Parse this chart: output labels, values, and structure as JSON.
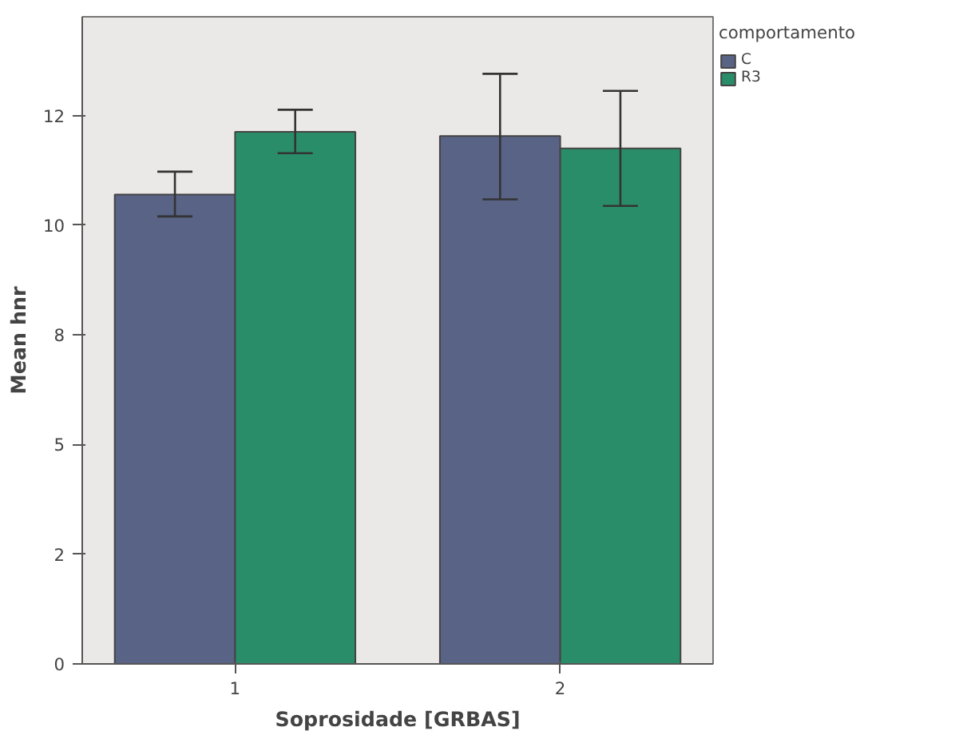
{
  "chart_data": {
    "type": "bar",
    "xlabel": "Soprosidade [GRBAS]",
    "ylabel": "Mean hnr",
    "legend_title": "comportamento",
    "categories": [
      "1",
      "2"
    ],
    "series": [
      {
        "name": "C",
        "color": "#586386",
        "values": [
          10.7,
          12.03
        ],
        "errors": [
          [
            10.2,
            11.22
          ],
          [
            10.59,
            13.45
          ]
        ]
      },
      {
        "name": "R3",
        "color": "#2a8d6a",
        "values": [
          12.13,
          11.75
        ],
        "errors": [
          [
            11.64,
            12.63
          ],
          [
            10.44,
            13.06
          ]
        ]
      }
    ],
    "ylim": [
      0,
      14.75
    ],
    "yticks": [
      0,
      {
        "value": 2.5,
        "label": "2"
      },
      5,
      {
        "value": 7.5,
        "label": "8"
      },
      10,
      {
        "value": 12.5,
        "label": "12"
      }
    ],
    "grid": false,
    "legend": "top right"
  }
}
